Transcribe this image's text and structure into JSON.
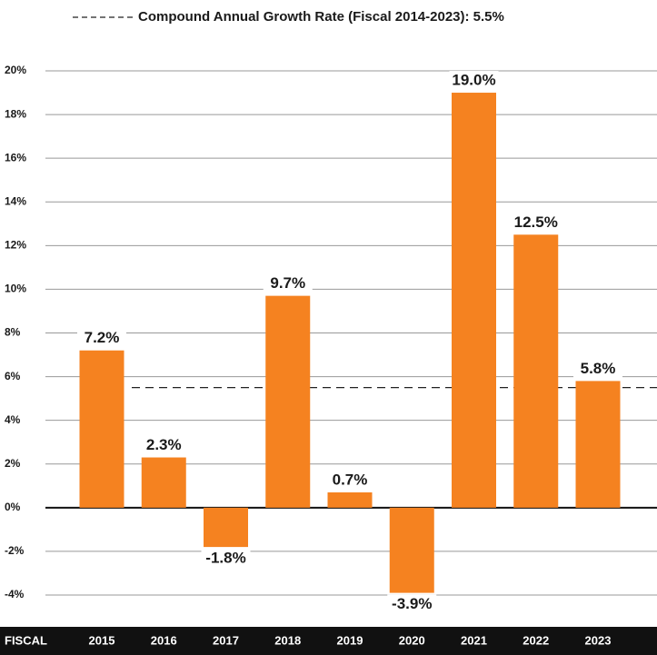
{
  "chart_data": {
    "type": "bar",
    "legend_label": "Compound Annual Growth Rate (Fiscal 2014-2023): 5.5%",
    "reference_line": 5.5,
    "x_label": "FISCAL",
    "categories": [
      "2015",
      "2016",
      "2017",
      "2018",
      "2019",
      "2020",
      "2021",
      "2022",
      "2023"
    ],
    "values": [
      7.2,
      2.3,
      -1.8,
      9.7,
      0.7,
      -3.9,
      19.0,
      12.5,
      5.8
    ],
    "value_labels": [
      "7.2%",
      "2.3%",
      "-1.8%",
      "9.7%",
      "0.7%",
      "-3.9%",
      "19.0%",
      "12.5%",
      "5.8%"
    ],
    "color": "#f58220",
    "ylim": [
      -4,
      20
    ],
    "yticks": [
      {
        "value": -4,
        "label": "-4%"
      },
      {
        "value": -2,
        "label": "-2%"
      },
      {
        "value": 0,
        "label": "0%"
      },
      {
        "value": 2,
        "label": "2%"
      },
      {
        "value": 4,
        "label": "4%"
      },
      {
        "value": 6,
        "label": "6%"
      },
      {
        "value": 8,
        "label": "8%"
      },
      {
        "value": 10,
        "label": "10%"
      },
      {
        "value": 12,
        "label": "12%"
      },
      {
        "value": 14,
        "label": "14%"
      },
      {
        "value": 16,
        "label": "16%"
      },
      {
        "value": 18,
        "label": "18%"
      },
      {
        "value": 20,
        "label": "20%"
      }
    ],
    "grid": true
  }
}
